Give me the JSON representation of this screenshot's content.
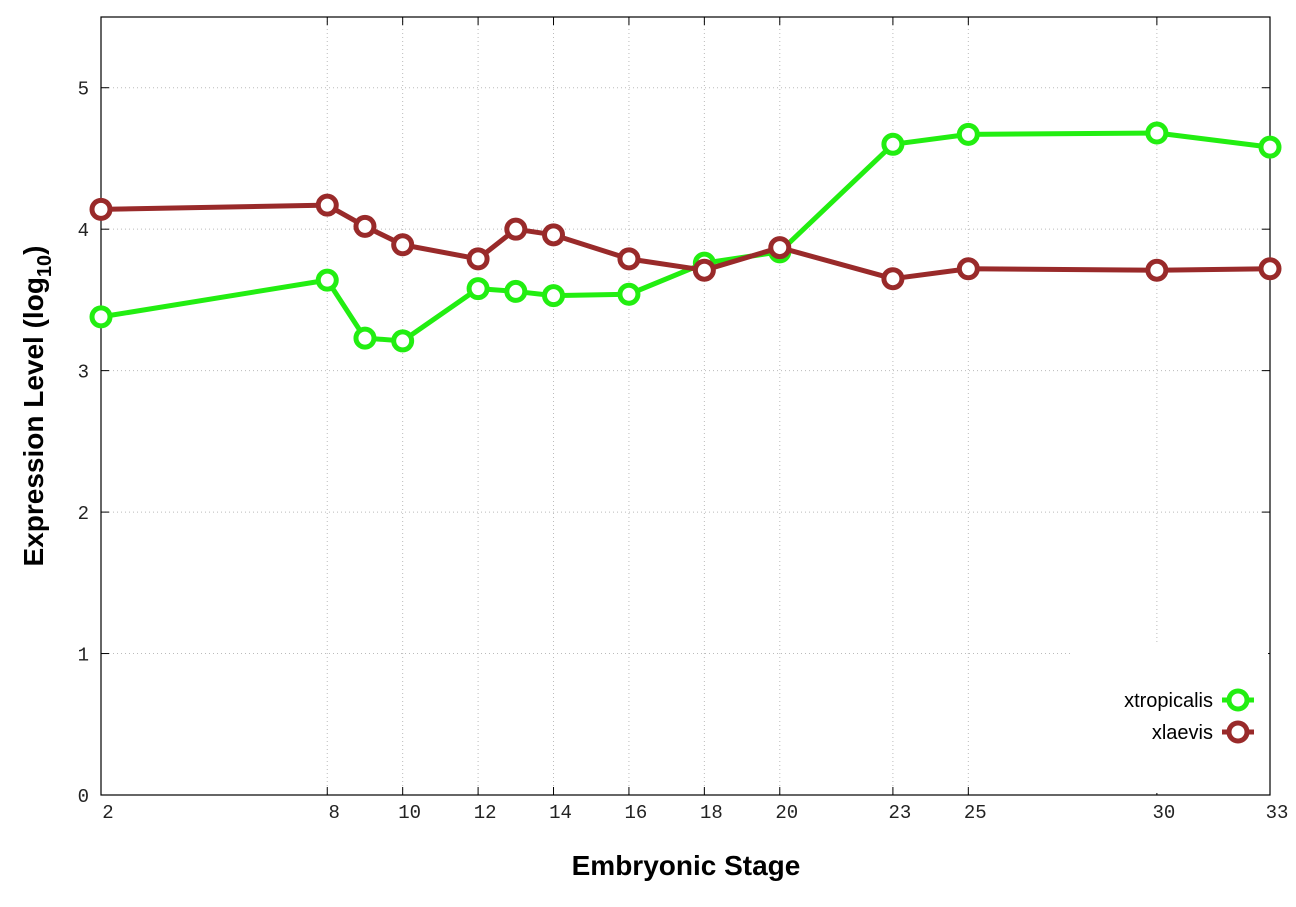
{
  "chart_data": {
    "type": "line",
    "x_label": "Embryonic Stage",
    "y_label": "Expression Level (log",
    "y_label_sub": "10",
    "y_label_end": ")",
    "x": [
      2,
      8,
      9,
      10,
      12,
      13,
      14,
      16,
      18,
      20,
      23,
      25,
      30,
      33
    ],
    "xlim": [
      2,
      33
    ],
    "xticks": [
      2,
      8,
      10,
      12,
      14,
      16,
      18,
      20,
      23,
      25,
      30,
      33
    ],
    "ylim": [
      0,
      5.5
    ],
    "yticks": [
      0,
      1,
      2,
      3,
      4,
      5
    ],
    "grid": true,
    "legend": "lower right",
    "series": [
      {
        "name": "xtropicalis",
        "color": "#22ee11",
        "values": [
          3.38,
          3.64,
          3.23,
          3.21,
          3.58,
          3.56,
          3.53,
          3.54,
          3.76,
          3.84,
          4.6,
          4.67,
          4.68,
          4.58
        ]
      },
      {
        "name": "xlaevis",
        "color": "#992a2a",
        "values": [
          4.14,
          4.17,
          4.02,
          3.89,
          3.79,
          4.0,
          3.96,
          3.79,
          3.71,
          3.87,
          3.65,
          3.72,
          3.71,
          3.72
        ]
      }
    ]
  }
}
